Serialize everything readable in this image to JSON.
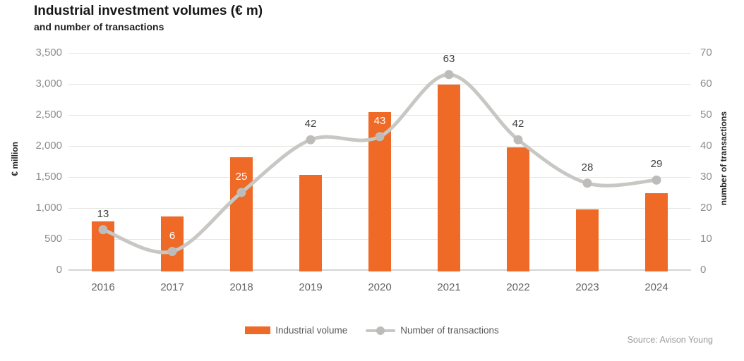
{
  "header": {
    "title": "Industrial investment volumes (€ m)",
    "subtitle": "and number of transactions"
  },
  "chart_data": {
    "type": "bar",
    "combo": "bar+line",
    "categories": [
      "2016",
      "2017",
      "2018",
      "2019",
      "2020",
      "2021",
      "2022",
      "2023",
      "2024"
    ],
    "series": [
      {
        "name": "Industrial volume",
        "type": "bar",
        "axis": "left",
        "color": "#ee6a26",
        "values": [
          780,
          860,
          1820,
          1530,
          2550,
          2990,
          1980,
          980,
          1240
        ]
      },
      {
        "name": "Number of transactions",
        "type": "line",
        "axis": "right",
        "color": "#c8c7c4",
        "marker_color": "#bdbcba",
        "values": [
          13,
          6,
          25,
          42,
          43,
          63,
          42,
          28,
          29
        ],
        "label_styles": [
          "dark",
          "white",
          "white",
          "dark",
          "white",
          "dark",
          "dark",
          "dark",
          "dark"
        ]
      }
    ],
    "left_axis": {
      "title": "€ million",
      "ticks": [
        "0",
        "500",
        "1,000",
        "1,500",
        "2,000",
        "2,500",
        "3,000",
        "3,500"
      ],
      "min": 0,
      "max": 3500
    },
    "right_axis": {
      "title": "number of transactions",
      "ticks": [
        "0",
        "10",
        "20",
        "30",
        "40",
        "50",
        "60",
        "70"
      ],
      "min": 0,
      "max": 70
    },
    "grid": true,
    "legend_position": "bottom"
  },
  "style": {
    "bar_color": "#ee6a26",
    "line_color": "#c8c7c4",
    "marker_color": "#bdbcba",
    "grid_color": "#e4e4e1",
    "axis_line_color": "#d4d4d1",
    "label_dark": "#3f3f3f",
    "label_white": "#ffffff"
  },
  "footer": {
    "source": "Source: Avison Young"
  }
}
